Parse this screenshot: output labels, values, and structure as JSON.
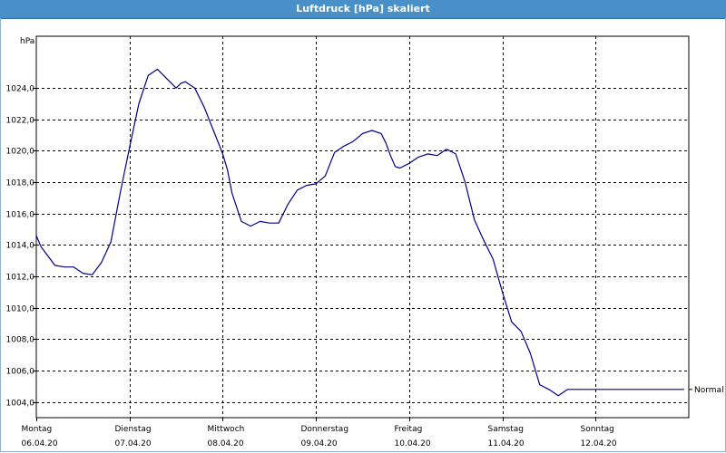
{
  "window": {
    "title": "Luftdruck [hPa] skaliert"
  },
  "chart_data": {
    "type": "line",
    "title": "Luftdruck [hPa] skaliert",
    "ylabel": "hPa",
    "ylim": [
      1003,
      1027.3
    ],
    "xlim": [
      0,
      7
    ],
    "grid": true,
    "y_ticks": [
      "1004,0",
      "1006,0",
      "1008,0",
      "1010,0",
      "1012,0",
      "1014,0",
      "1016,0",
      "1018,0",
      "1020,0",
      "1022,0",
      "1024,0"
    ],
    "y_tick_values": [
      1004,
      1006,
      1008,
      1010,
      1012,
      1014,
      1016,
      1018,
      1020,
      1022,
      1024
    ],
    "x_ticks": [
      {
        "day": "Montag",
        "date": "06.04.20"
      },
      {
        "day": "Dienstag",
        "date": "07.04.20"
      },
      {
        "day": "Mittwoch",
        "date": "08.04.20"
      },
      {
        "day": "Donnerstag",
        "date": "09.04.20"
      },
      {
        "day": "Freitag",
        "date": "10.04.20"
      },
      {
        "day": "Samstag",
        "date": "11.04.20"
      },
      {
        "day": "Sonntag",
        "date": "12.04.20"
      }
    ],
    "series": [
      {
        "name": "Normal",
        "color": "#00008b",
        "x": [
          0,
          0.05,
          0.1,
          0.2,
          0.3,
          0.4,
          0.5,
          0.6,
          0.7,
          0.8,
          0.9,
          1.0,
          1.1,
          1.2,
          1.3,
          1.4,
          1.5,
          1.55,
          1.6,
          1.7,
          1.8,
          1.9,
          2.0,
          2.05,
          2.1,
          2.2,
          2.3,
          2.4,
          2.5,
          2.6,
          2.7,
          2.8,
          2.9,
          3.0,
          3.1,
          3.2,
          3.3,
          3.4,
          3.5,
          3.6,
          3.7,
          3.75,
          3.8,
          3.85,
          3.9,
          4.0,
          4.1,
          4.2,
          4.3,
          4.4,
          4.5,
          4.6,
          4.7,
          4.8,
          4.9,
          5.0,
          5.1,
          5.2,
          5.3,
          5.4,
          5.5,
          5.6,
          5.7,
          5.8,
          5.9,
          6.0,
          6.1,
          6.2,
          6.3,
          6.4,
          6.5,
          6.6,
          6.7,
          6.8,
          6.9,
          6.95
        ],
        "values": [
          1014.6,
          1013.9,
          1013.5,
          1012.7,
          1012.6,
          1012.6,
          1012.2,
          1012.1,
          1012.9,
          1014.2,
          1017.3,
          1020.2,
          1023.0,
          1024.8,
          1025.2,
          1024.6,
          1024.0,
          1024.3,
          1024.4,
          1024.0,
          1022.8,
          1021.3,
          1019.8,
          1018.8,
          1017.3,
          1015.5,
          1015.2,
          1015.5,
          1015.4,
          1015.4,
          1016.6,
          1017.5,
          1017.8,
          1017.9,
          1018.4,
          1019.9,
          1020.3,
          1020.6,
          1021.1,
          1021.3,
          1021.1,
          1020.5,
          1019.7,
          1019.0,
          1018.9,
          1019.2,
          1019.6,
          1019.8,
          1019.7,
          1020.1,
          1019.8,
          1018.0,
          1015.6,
          1014.3,
          1013.1,
          1011.0,
          1009.1,
          1008.5,
          1007.1,
          1005.1,
          1004.8,
          1004.4,
          1004.8,
          1004.8,
          1004.8,
          1004.8,
          1004.8,
          1004.8,
          1004.8,
          1004.8,
          1004.8,
          1004.8,
          1004.8,
          1004.8,
          1004.8,
          1004.8
        ]
      }
    ]
  }
}
